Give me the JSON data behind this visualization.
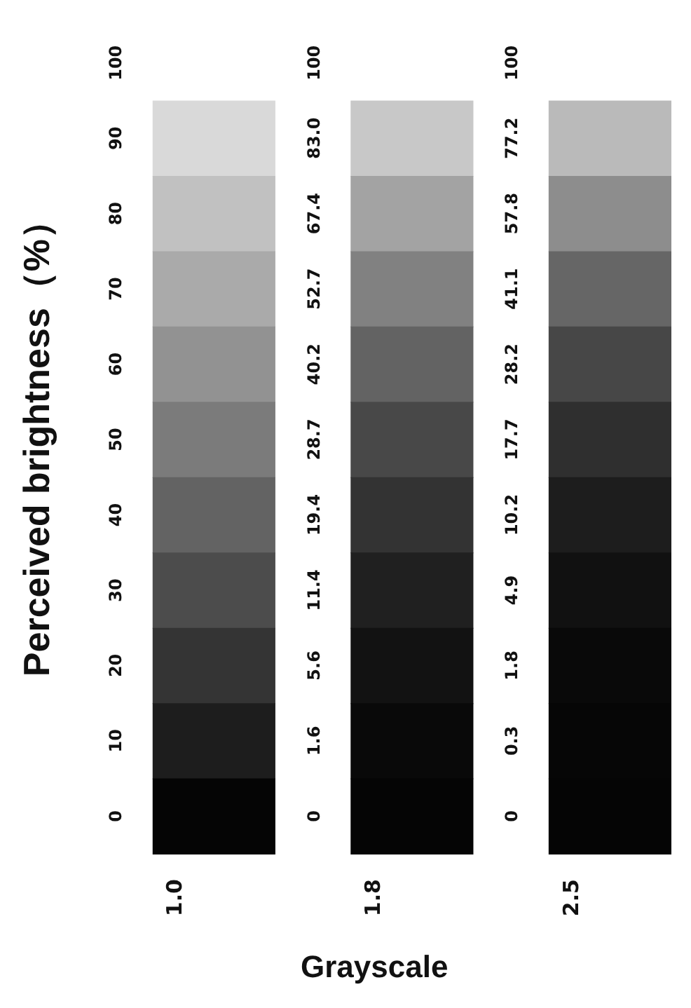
{
  "chart_data": {
    "type": "heatmap",
    "xlabel": "Grayscale",
    "ylabel": "Perceived brightness（%）",
    "categories": [
      "1.0",
      "1.8",
      "2.5"
    ],
    "y_categories": [
      null,
      null,
      null,
      null,
      null,
      null,
      null,
      null,
      null,
      null,
      null
    ],
    "cells": [
      [
        100,
        100,
        100
      ],
      [
        90,
        83.0,
        77.2
      ],
      [
        80,
        67.4,
        57.8
      ],
      [
        70,
        52.7,
        41.1
      ],
      [
        60,
        40.2,
        28.2
      ],
      [
        50,
        28.7,
        17.7
      ],
      [
        40,
        19.4,
        10.2
      ],
      [
        30,
        11.4,
        4.9
      ],
      [
        20,
        5.6,
        1.8
      ],
      [
        10,
        1.6,
        0.3
      ],
      [
        0,
        0,
        0
      ]
    ],
    "cell_labels": [
      [
        "100",
        "100",
        "100"
      ],
      [
        "90",
        "83.0",
        "77.2"
      ],
      [
        "80",
        "67.4",
        "57.8"
      ],
      [
        "70",
        "52.7",
        "41.1"
      ],
      [
        "60",
        "40.2",
        "28.2"
      ],
      [
        "50",
        "28.7",
        "17.7"
      ],
      [
        "40",
        "19.4",
        "10.2"
      ],
      [
        "30",
        "11.4",
        "4.9"
      ],
      [
        "20",
        "5.6",
        "1.8"
      ],
      [
        "10",
        "1.6",
        "0.3"
      ],
      [
        "0",
        "0",
        "0"
      ]
    ]
  }
}
